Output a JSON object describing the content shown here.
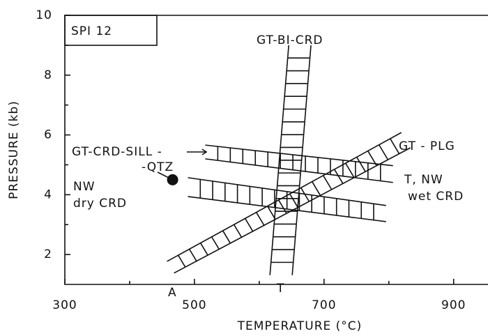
{
  "chart_data": {
    "type": "phase-diagram",
    "xlabel": "TEMPERATURE (°C)",
    "ylabel": "PRESSURE (kb)",
    "xlim": [
      300,
      953
    ],
    "ylim": [
      1,
      10
    ],
    "xticks": [
      300,
      500,
      700,
      900
    ],
    "yticks": [
      2,
      4,
      6,
      8,
      10
    ],
    "xminor": [
      400,
      600,
      800
    ],
    "yminor": [
      3,
      5,
      7,
      9
    ],
    "bands": [
      {
        "edges": [
          {
            "x": [
              616.5,
              645.5
            ],
            "y": [
              1.31,
              9.0
            ]
          },
          {
            "x": [
              650.9,
              679.8
            ],
            "y": [
              1.31,
              9.0
            ]
          }
        ]
      },
      {
        "edges": [
          {
            "x": [
              457.7,
              819.3
            ],
            "y": [
              1.77,
              6.08
            ]
          },
          {
            "x": [
              468.5,
              833.3
            ],
            "y": [
              1.38,
              5.57
            ]
          }
        ]
      },
      {
        "edges": [
          {
            "x": [
              516.7,
              806.4
            ],
            "y": [
              5.66,
              4.97
            ]
          },
          {
            "x": [
              516.7,
              806.4
            ],
            "y": [
              5.2,
              4.41
            ]
          }
        ]
      },
      {
        "edges": [
          {
            "x": [
              489.9,
              795.7
            ],
            "y": [
              4.57,
              3.64
            ]
          },
          {
            "x": [
              489.9,
              795.7
            ],
            "y": [
              3.94,
              3.1
            ]
          }
        ]
      }
    ],
    "point": {
      "x": 466.3,
      "y": 4.5
    },
    "labels": [
      "SPI 12",
      "GT-BI-CRD",
      "GT - PLG",
      "GT-CRD-SILL -",
      "-QTZ",
      "NW",
      "dry CRD",
      "T, NW",
      "wet CRD",
      "A",
      "T"
    ]
  }
}
